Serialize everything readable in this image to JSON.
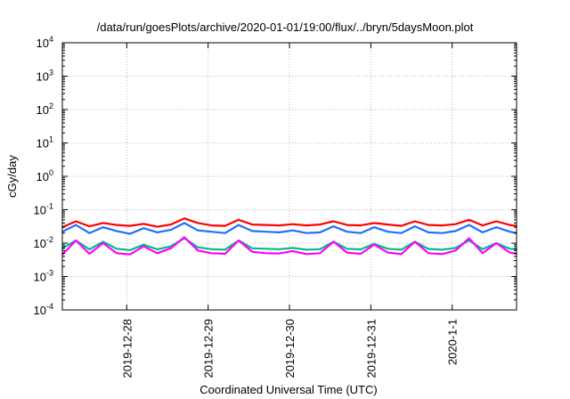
{
  "chart_data": {
    "type": "line",
    "title": "/data/run/goesPlots/archive/2020-01-01/19:00/flux/../bryn/5daysMoon.plot",
    "xlabel": "Coordinated Universal Time (UTC)",
    "ylabel": "cGy/day",
    "yscale": "log",
    "ylim": [
      0.0001,
      10000
    ],
    "y_ticks": [
      {
        "mantissa": "10",
        "exp": "-4"
      },
      {
        "mantissa": "10",
        "exp": "-3"
      },
      {
        "mantissa": "10",
        "exp": "-2"
      },
      {
        "mantissa": "10",
        "exp": "-1"
      },
      {
        "mantissa": "10",
        "exp": "0"
      },
      {
        "mantissa": "10",
        "exp": "1"
      },
      {
        "mantissa": "10",
        "exp": "2"
      },
      {
        "mantissa": "10",
        "exp": "3"
      },
      {
        "mantissa": "10",
        "exp": "4"
      }
    ],
    "xlim": [
      "2019-12-27T05:00",
      "2020-01-01T19:00"
    ],
    "x_ticks": [
      {
        "x": "2019-12-28T00:00",
        "label": "2019-12-28"
      },
      {
        "x": "2019-12-29T00:00",
        "label": "2019-12-29"
      },
      {
        "x": "2019-12-30T00:00",
        "label": "2019-12-30"
      },
      {
        "x": "2019-12-31T00:00",
        "label": "2019-12-31"
      },
      {
        "x": "2020-01-01T00:00",
        "label": "2020-1-1"
      }
    ],
    "grid": true,
    "series": [
      {
        "color": "#ff0000",
        "x": [
          "2019-12-27T05:00",
          "2019-12-27T09:00",
          "2019-12-27T13:00",
          "2019-12-27T17:00",
          "2019-12-27T21:00",
          "2019-12-28T01:00",
          "2019-12-28T05:00",
          "2019-12-28T09:00",
          "2019-12-28T13:00",
          "2019-12-28T17:00",
          "2019-12-28T21:00",
          "2019-12-29T01:00",
          "2019-12-29T05:00",
          "2019-12-29T09:00",
          "2019-12-29T13:00",
          "2019-12-29T17:00",
          "2019-12-29T21:00",
          "2019-12-30T01:00",
          "2019-12-30T05:00",
          "2019-12-30T09:00",
          "2019-12-30T13:00",
          "2019-12-30T17:00",
          "2019-12-30T21:00",
          "2019-12-31T01:00",
          "2019-12-31T05:00",
          "2019-12-31T09:00",
          "2019-12-31T13:00",
          "2019-12-31T17:00",
          "2019-12-31T21:00",
          "2020-01-01T01:00",
          "2020-01-01T05:00",
          "2020-01-01T09:00",
          "2020-01-01T13:00",
          "2020-01-01T17:00",
          "2020-01-01T19:00"
        ],
        "values": [
          0.03,
          0.045,
          0.032,
          0.04,
          0.035,
          0.033,
          0.038,
          0.031,
          0.036,
          0.055,
          0.04,
          0.034,
          0.033,
          0.05,
          0.036,
          0.035,
          0.034,
          0.037,
          0.034,
          0.036,
          0.045,
          0.035,
          0.034,
          0.04,
          0.036,
          0.033,
          0.045,
          0.035,
          0.034,
          0.037,
          0.05,
          0.034,
          0.045,
          0.035,
          0.033
        ]
      },
      {
        "color": "#1f6fff",
        "x": [
          "2019-12-27T05:00",
          "2019-12-27T09:00",
          "2019-12-27T13:00",
          "2019-12-27T17:00",
          "2019-12-27T21:00",
          "2019-12-28T01:00",
          "2019-12-28T05:00",
          "2019-12-28T09:00",
          "2019-12-28T13:00",
          "2019-12-28T17:00",
          "2019-12-28T21:00",
          "2019-12-29T01:00",
          "2019-12-29T05:00",
          "2019-12-29T09:00",
          "2019-12-29T13:00",
          "2019-12-29T17:00",
          "2019-12-29T21:00",
          "2019-12-30T01:00",
          "2019-12-30T05:00",
          "2019-12-30T09:00",
          "2019-12-30T13:00",
          "2019-12-30T17:00",
          "2019-12-30T21:00",
          "2019-12-31T01:00",
          "2019-12-31T05:00",
          "2019-12-31T09:00",
          "2019-12-31T13:00",
          "2019-12-31T17:00",
          "2019-12-31T21:00",
          "2020-01-01T01:00",
          "2020-01-01T05:00",
          "2020-01-01T09:00",
          "2020-01-01T13:00",
          "2020-01-01T17:00",
          "2020-01-01T19:00"
        ],
        "values": [
          0.022,
          0.035,
          0.02,
          0.03,
          0.023,
          0.019,
          0.028,
          0.021,
          0.025,
          0.04,
          0.024,
          0.022,
          0.02,
          0.035,
          0.023,
          0.022,
          0.021,
          0.024,
          0.02,
          0.021,
          0.032,
          0.022,
          0.02,
          0.03,
          0.022,
          0.02,
          0.032,
          0.021,
          0.02,
          0.023,
          0.035,
          0.021,
          0.03,
          0.022,
          0.02
        ]
      },
      {
        "color": "#00b98a",
        "x": [
          "2019-12-27T05:00",
          "2019-12-27T09:00",
          "2019-12-27T13:00",
          "2019-12-27T17:00",
          "2019-12-27T21:00",
          "2019-12-28T01:00",
          "2019-12-28T05:00",
          "2019-12-28T09:00",
          "2019-12-28T13:00",
          "2019-12-28T17:00",
          "2019-12-28T21:00",
          "2019-12-29T01:00",
          "2019-12-29T05:00",
          "2019-12-29T09:00",
          "2019-12-29T13:00",
          "2019-12-29T17:00",
          "2019-12-29T21:00",
          "2019-12-30T01:00",
          "2019-12-30T05:00",
          "2019-12-30T09:00",
          "2019-12-30T13:00",
          "2019-12-30T17:00",
          "2019-12-30T21:00",
          "2019-12-31T01:00",
          "2019-12-31T05:00",
          "2019-12-31T09:00",
          "2019-12-31T13:00",
          "2019-12-31T17:00",
          "2019-12-31T21:00",
          "2020-01-01T01:00",
          "2020-01-01T05:00",
          "2020-01-01T09:00",
          "2020-01-01T13:00",
          "2020-01-01T17:00",
          "2020-01-01T19:00"
        ],
        "values": [
          0.007,
          0.012,
          0.0065,
          0.011,
          0.0068,
          0.0062,
          0.009,
          0.0065,
          0.008,
          0.014,
          0.0075,
          0.0066,
          0.0064,
          0.012,
          0.007,
          0.0068,
          0.0066,
          0.0072,
          0.0064,
          0.0066,
          0.011,
          0.0068,
          0.0065,
          0.0095,
          0.0068,
          0.0064,
          0.011,
          0.0067,
          0.0064,
          0.0072,
          0.012,
          0.0066,
          0.01,
          0.0068,
          0.0065
        ]
      },
      {
        "color": "#ff00ff",
        "x": [
          "2019-12-27T05:00",
          "2019-12-27T09:00",
          "2019-12-27T13:00",
          "2019-12-27T17:00",
          "2019-12-27T21:00",
          "2019-12-28T01:00",
          "2019-12-28T05:00",
          "2019-12-28T09:00",
          "2019-12-28T13:00",
          "2019-12-28T17:00",
          "2019-12-28T21:00",
          "2019-12-29T01:00",
          "2019-12-29T05:00",
          "2019-12-29T09:00",
          "2019-12-29T13:00",
          "2019-12-29T17:00",
          "2019-12-29T21:00",
          "2019-12-30T01:00",
          "2019-12-30T05:00",
          "2019-12-30T09:00",
          "2019-12-30T13:00",
          "2019-12-30T17:00",
          "2019-12-30T21:00",
          "2019-12-31T01:00",
          "2019-12-31T05:00",
          "2019-12-31T09:00",
          "2019-12-31T13:00",
          "2019-12-31T17:00",
          "2019-12-31T21:00",
          "2020-01-01T01:00",
          "2020-01-01T05:00",
          "2020-01-01T09:00",
          "2020-01-01T13:00",
          "2020-01-01T17:00",
          "2020-01-01T19:00"
        ],
        "values": [
          0.0045,
          0.012,
          0.0048,
          0.01,
          0.005,
          0.0046,
          0.008,
          0.005,
          0.007,
          0.015,
          0.006,
          0.005,
          0.0048,
          0.012,
          0.0055,
          0.005,
          0.0049,
          0.0058,
          0.0047,
          0.005,
          0.011,
          0.0052,
          0.0048,
          0.009,
          0.0052,
          0.0047,
          0.011,
          0.005,
          0.0047,
          0.006,
          0.014,
          0.005,
          0.01,
          0.0052,
          0.0048
        ]
      }
    ]
  }
}
